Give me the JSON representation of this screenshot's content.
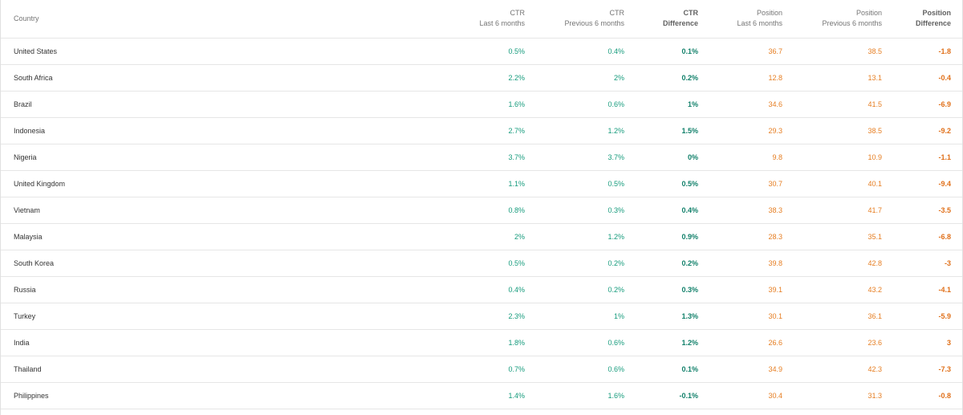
{
  "headers": {
    "country": "Country",
    "ctr_last": [
      "CTR",
      "Last 6 months"
    ],
    "ctr_prev": [
      "CTR",
      "Previous 6 months"
    ],
    "ctr_diff": [
      "CTR",
      "Difference"
    ],
    "pos_last": [
      "Position",
      "Last 6 months"
    ],
    "pos_prev": [
      "Position",
      "Previous 6 months"
    ],
    "pos_diff": [
      "Position",
      "Difference"
    ]
  },
  "rows": [
    {
      "country": "United States",
      "ctr_last": "0.5%",
      "ctr_prev": "0.4%",
      "ctr_diff": "0.1%",
      "pos_last": "36.7",
      "pos_prev": "38.5",
      "pos_diff": "-1.8"
    },
    {
      "country": "South Africa",
      "ctr_last": "2.2%",
      "ctr_prev": "2%",
      "ctr_diff": "0.2%",
      "pos_last": "12.8",
      "pos_prev": "13.1",
      "pos_diff": "-0.4"
    },
    {
      "country": "Brazil",
      "ctr_last": "1.6%",
      "ctr_prev": "0.6%",
      "ctr_diff": "1%",
      "pos_last": "34.6",
      "pos_prev": "41.5",
      "pos_diff": "-6.9"
    },
    {
      "country": "Indonesia",
      "ctr_last": "2.7%",
      "ctr_prev": "1.2%",
      "ctr_diff": "1.5%",
      "pos_last": "29.3",
      "pos_prev": "38.5",
      "pos_diff": "-9.2"
    },
    {
      "country": "Nigeria",
      "ctr_last": "3.7%",
      "ctr_prev": "3.7%",
      "ctr_diff": "0%",
      "pos_last": "9.8",
      "pos_prev": "10.9",
      "pos_diff": "-1.1"
    },
    {
      "country": "United Kingdom",
      "ctr_last": "1.1%",
      "ctr_prev": "0.5%",
      "ctr_diff": "0.5%",
      "pos_last": "30.7",
      "pos_prev": "40.1",
      "pos_diff": "-9.4"
    },
    {
      "country": "Vietnam",
      "ctr_last": "0.8%",
      "ctr_prev": "0.3%",
      "ctr_diff": "0.4%",
      "pos_last": "38.3",
      "pos_prev": "41.7",
      "pos_diff": "-3.5"
    },
    {
      "country": "Malaysia",
      "ctr_last": "2%",
      "ctr_prev": "1.2%",
      "ctr_diff": "0.9%",
      "pos_last": "28.3",
      "pos_prev": "35.1",
      "pos_diff": "-6.8"
    },
    {
      "country": "South Korea",
      "ctr_last": "0.5%",
      "ctr_prev": "0.2%",
      "ctr_diff": "0.2%",
      "pos_last": "39.8",
      "pos_prev": "42.8",
      "pos_diff": "-3"
    },
    {
      "country": "Russia",
      "ctr_last": "0.4%",
      "ctr_prev": "0.2%",
      "ctr_diff": "0.3%",
      "pos_last": "39.1",
      "pos_prev": "43.2",
      "pos_diff": "-4.1"
    },
    {
      "country": "Turkey",
      "ctr_last": "2.3%",
      "ctr_prev": "1%",
      "ctr_diff": "1.3%",
      "pos_last": "30.1",
      "pos_prev": "36.1",
      "pos_diff": "-5.9"
    },
    {
      "country": "India",
      "ctr_last": "1.8%",
      "ctr_prev": "0.6%",
      "ctr_diff": "1.2%",
      "pos_last": "26.6",
      "pos_prev": "23.6",
      "pos_diff": "3"
    },
    {
      "country": "Thailand",
      "ctr_last": "0.7%",
      "ctr_prev": "0.6%",
      "ctr_diff": "0.1%",
      "pos_last": "34.9",
      "pos_prev": "42.3",
      "pos_diff": "-7.3"
    },
    {
      "country": "Philippines",
      "ctr_last": "1.4%",
      "ctr_prev": "1.6%",
      "ctr_diff": "-0.1%",
      "pos_last": "30.4",
      "pos_prev": "31.3",
      "pos_diff": "-0.8"
    }
  ],
  "colors": {
    "ctr": "#159b7c",
    "ctr_diff": "#11806a",
    "position": "#e67e22",
    "position_diff": "#e0701a",
    "border": "#e6e6e6"
  }
}
